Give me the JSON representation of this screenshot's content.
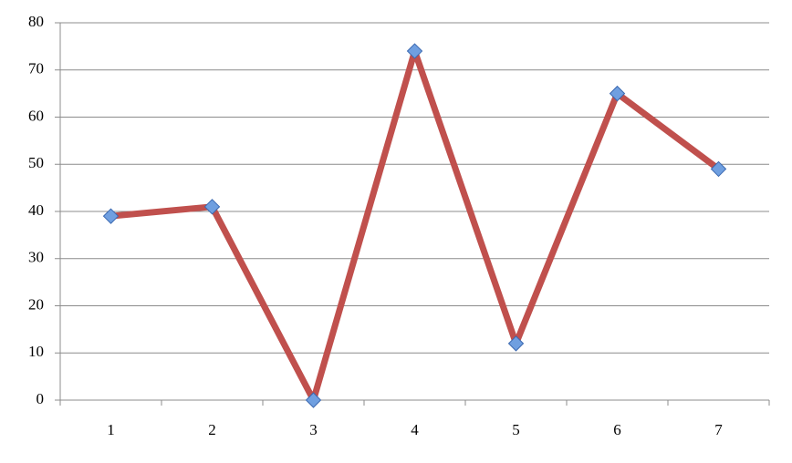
{
  "chart_data": {
    "type": "line",
    "categories": [
      "1",
      "2",
      "3",
      "4",
      "5",
      "6",
      "7"
    ],
    "values": [
      39,
      41,
      0,
      74,
      12,
      65,
      49
    ],
    "color": "#c0504d",
    "marker_color": "#6f9fe0",
    "ylim": [
      0,
      80
    ],
    "yticks": [
      0,
      10,
      20,
      30,
      40,
      50,
      60,
      70,
      80
    ],
    "grid": true
  }
}
